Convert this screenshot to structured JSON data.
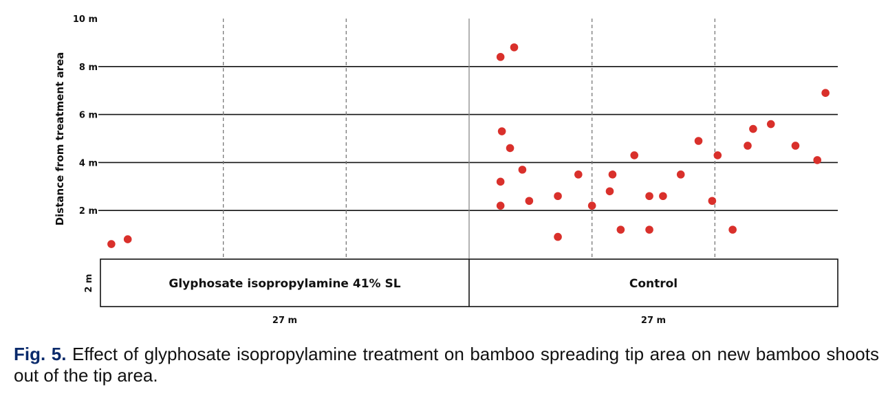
{
  "chart_data": {
    "type": "scatter",
    "ylabel": "Distance from treatment area",
    "ytick_labels": [
      "2 m",
      "4 m",
      "6 m",
      "8 m",
      "10 m"
    ],
    "ylim": [
      0,
      10
    ],
    "grid": "horizontal solid at 2, 4, 6, 8 m; vertical dashed at 9 m intervals",
    "regions": [
      {
        "name": "Glyphosate isopropylamine 41% SL",
        "width_label": "27 m"
      },
      {
        "name": "Control",
        "width_label": "27 m"
      }
    ],
    "strip_height_label": "2 m",
    "point_color": "#d9302b",
    "points": [
      {
        "x": 0.8,
        "y": 0.6
      },
      {
        "x": 2.0,
        "y": 0.8
      },
      {
        "x": 29.3,
        "y": 8.4
      },
      {
        "x": 30.3,
        "y": 8.8
      },
      {
        "x": 29.4,
        "y": 5.3
      },
      {
        "x": 30.0,
        "y": 4.6
      },
      {
        "x": 30.9,
        "y": 3.7
      },
      {
        "x": 29.3,
        "y": 3.2
      },
      {
        "x": 29.3,
        "y": 2.2
      },
      {
        "x": 31.4,
        "y": 2.4
      },
      {
        "x": 33.5,
        "y": 2.6
      },
      {
        "x": 33.5,
        "y": 0.9
      },
      {
        "x": 35.0,
        "y": 3.5
      },
      {
        "x": 36.0,
        "y": 2.2
      },
      {
        "x": 37.3,
        "y": 2.8
      },
      {
        "x": 37.5,
        "y": 3.5
      },
      {
        "x": 38.1,
        "y": 1.2
      },
      {
        "x": 39.1,
        "y": 4.3
      },
      {
        "x": 40.2,
        "y": 2.6
      },
      {
        "x": 40.2,
        "y": 1.2
      },
      {
        "x": 41.2,
        "y": 2.6
      },
      {
        "x": 42.5,
        "y": 3.5
      },
      {
        "x": 43.8,
        "y": 4.9
      },
      {
        "x": 44.8,
        "y": 2.4
      },
      {
        "x": 45.2,
        "y": 4.3
      },
      {
        "x": 46.3,
        "y": 1.2
      },
      {
        "x": 47.4,
        "y": 4.7
      },
      {
        "x": 47.8,
        "y": 5.4
      },
      {
        "x": 49.1,
        "y": 5.6
      },
      {
        "x": 50.9,
        "y": 4.7
      },
      {
        "x": 52.5,
        "y": 4.1
      },
      {
        "x": 53.1,
        "y": 6.9
      }
    ]
  },
  "caption": {
    "label": "Fig. 5.",
    "text": "Effect of glyphosate isopropylamine treatment on bamboo spreading tip area on new bamboo shoots out of the tip area."
  }
}
